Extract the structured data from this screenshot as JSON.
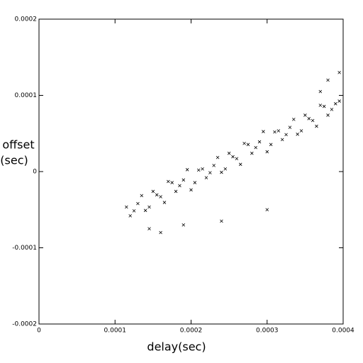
{
  "chart_data": {
    "type": "scatter",
    "xlabel": "delay(sec)",
    "ylabel_lines": [
      "offset",
      "(sec)"
    ],
    "color": "#000000",
    "marker": "x",
    "xlim": [
      0,
      0.0004
    ],
    "ylim": [
      -0.0002,
      0.0002
    ],
    "xticks": [
      0,
      0.0001,
      0.0002,
      0.0003,
      0.0004
    ],
    "yticks": [
      -0.0002,
      -0.0001,
      0,
      0.0001,
      0.0002
    ],
    "x": [
      0.000115,
      0.000125,
      0.000135,
      0.000145,
      0.000155,
      0.000165,
      0.000175,
      0.000185,
      0.000195,
      0.000205,
      0.000215,
      0.000225,
      0.000235,
      0.000245,
      0.000255,
      0.000265,
      0.000275,
      0.000285,
      0.000295,
      0.000305,
      0.000315,
      0.000325,
      0.000335,
      0.000345,
      0.000355,
      0.000365,
      0.000375,
      0.000385,
      0.000395,
      0.00012,
      0.00013,
      0.00014,
      0.00015,
      0.00016,
      0.00017,
      0.00018,
      0.00019,
      0.0002,
      0.00021,
      0.00022,
      0.00023,
      0.00024,
      0.00025,
      0.00026,
      0.00027,
      0.00028,
      0.00029,
      0.0003,
      0.00031,
      0.00032,
      0.00033,
      0.00034,
      0.00035,
      0.00036,
      0.00037,
      0.00038,
      0.00039,
      0.000145,
      0.00016,
      0.00024,
      0.0003,
      0.00037,
      0.000395,
      0.00019,
      0.00038
    ],
    "y": [
      -4.65e-05,
      -5.15e-05,
      -3.15e-05,
      -4.65e-05,
      -3.05e-05,
      -4.05e-05,
      -1.45e-05,
      -1.85e-05,
      2.5e-06,
      -1.45e-05,
      3.5e-06,
      -1.5e-06,
      1.85e-05,
      3.5e-06,
      1.95e-05,
      9.5e-06,
      3.55e-05,
      3.15e-05,
      5.25e-05,
      3.55e-05,
      5.35e-05,
      4.85e-05,
      6.85e-05,
      5.35e-05,
      6.95e-05,
      5.95e-05,
      8.55e-05,
      8.15e-05,
      9.25e-05,
      -5.8e-05,
      -4.2e-05,
      -5.1e-05,
      -2.6e-05,
      -3.3e-05,
      -1.3e-05,
      -2.6e-05,
      -1.1e-05,
      -2.4e-05,
      2e-06,
      -8e-06,
      8e-06,
      -1e-06,
      2.4e-05,
      1.7e-05,
      3.7e-05,
      2.4e-05,
      3.9e-05,
      2.6e-05,
      5.2e-05,
      4.2e-05,
      5.8e-05,
      4.9e-05,
      7.4e-05,
      6.7e-05,
      8.7e-05,
      7.4e-05,
      8.9e-05,
      -7.5e-05,
      -8e-05,
      -6.5e-05,
      -5e-05,
      0.000105,
      0.00013,
      -7e-05,
      0.00012
    ]
  }
}
